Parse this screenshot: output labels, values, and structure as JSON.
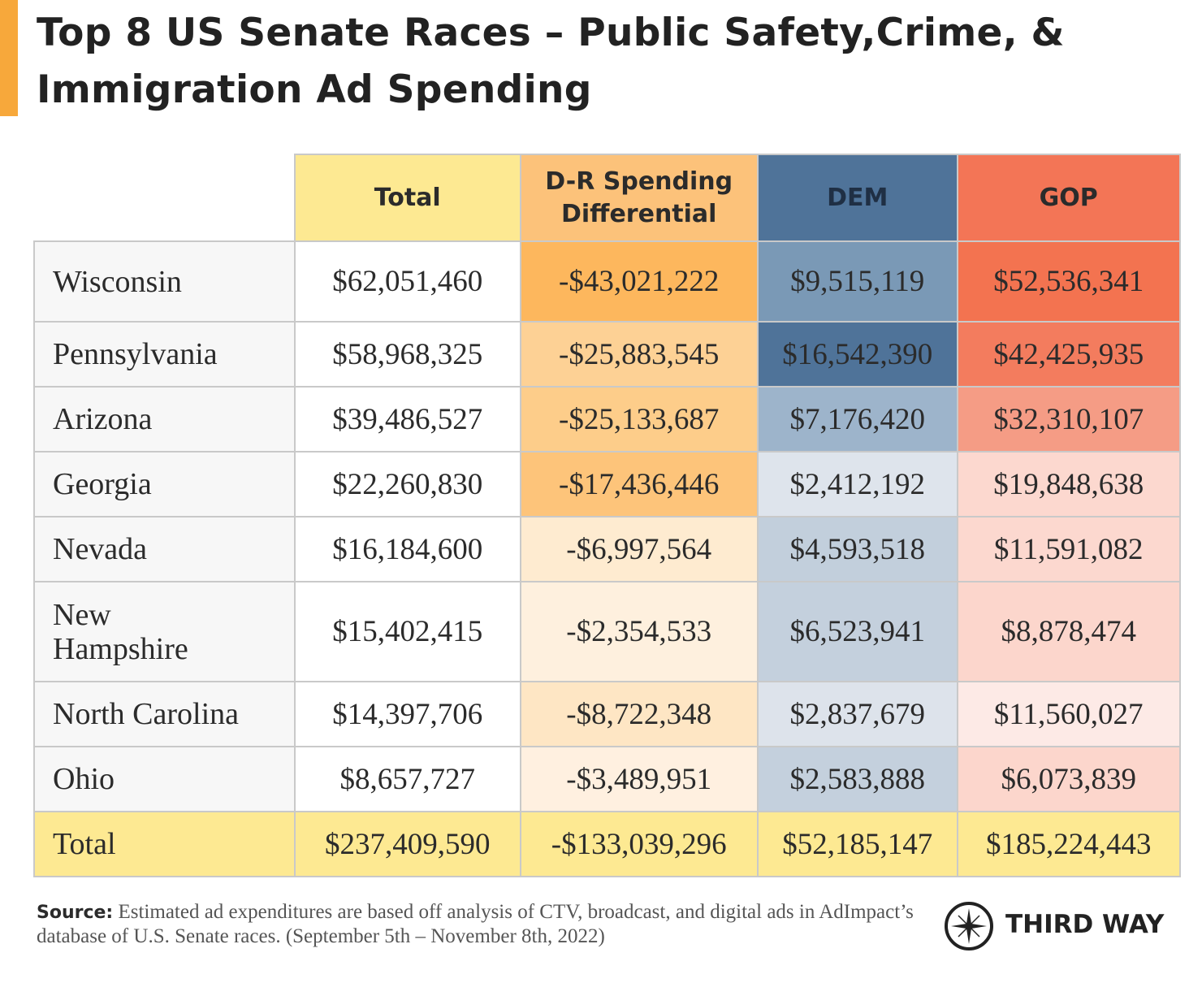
{
  "header": {
    "title": [
      "Top 8 US Senate Races – Public Safety,Crime, &",
      "Immigration Ad Spending"
    ]
  },
  "table": {
    "columns": [
      {
        "label": "Total",
        "color": "#fde992"
      },
      {
        "label": "D-R Spending Differential",
        "color": "#fcc27a"
      },
      {
        "label": "DEM",
        "color": "#4f7399"
      },
      {
        "label": "GOP",
        "color": "#f37556"
      }
    ],
    "rows": [
      {
        "name": "Wisconsin",
        "cells": [
          "$62,051,460",
          "-$43,021,222",
          "$9,515,119",
          "$52,536,341"
        ],
        "colors": [
          "#ffffff",
          "#fdb75d",
          "#7a99b6",
          "#f37350"
        ]
      },
      {
        "name": "Pennsylvania",
        "cells": [
          "$58,968,325",
          "-$25,883,545",
          "$16,542,390",
          "$42,425,935"
        ],
        "colors": [
          "#ffffff",
          "#fdd195",
          "#4f7399",
          "#f37c5e"
        ]
      },
      {
        "name": "Arizona",
        "cells": [
          "$39,486,527",
          "-$25,133,687",
          "$7,176,420",
          "$32,310,107"
        ],
        "colors": [
          "#ffffff",
          "#fdcd8a",
          "#9db4cb",
          "#f59c85"
        ]
      },
      {
        "name": "Georgia",
        "cells": [
          "$22,260,830",
          "-$17,436,446",
          "$2,412,192",
          "$19,848,638"
        ],
        "colors": [
          "#ffffff",
          "#fdc47a",
          "#dee4ec",
          "#fcd8cf"
        ]
      },
      {
        "name": "Nevada",
        "cells": [
          "$16,184,600",
          "-$6,997,564",
          "$4,593,518",
          "$11,591,082"
        ],
        "colors": [
          "#ffffff",
          "#feebd0",
          "#c2cfdc",
          "#fcd8cf"
        ]
      },
      {
        "name": "New Hampshire",
        "cells": [
          "$15,402,415",
          "-$2,354,533",
          "$6,523,941",
          "$8,878,474"
        ],
        "colors": [
          "#ffffff",
          "#fef0de",
          "#c4d0dd",
          "#fcd6cc"
        ]
      },
      {
        "name": "North Carolina",
        "cells": [
          "$14,397,706",
          "-$8,722,348",
          "$2,837,679",
          "$11,560,027"
        ],
        "colors": [
          "#ffffff",
          "#fee6c4",
          "#dde3eb",
          "#fdeae6"
        ]
      },
      {
        "name": "Ohio",
        "cells": [
          "$8,657,727",
          "-$3,489,951",
          "$2,583,888",
          "$6,073,839"
        ],
        "colors": [
          "#ffffff",
          "#fff0e0",
          "#c4d0dd",
          "#fcd6cc"
        ]
      }
    ],
    "total": {
      "name": "Total",
      "cells": [
        "$237,409,590",
        "-$133,039,296",
        "$52,185,147",
        "$185,224,443"
      ],
      "color": "#fde992"
    }
  },
  "source": {
    "label": "Source:",
    "text": "Estimated ad expenditures are based off analysis of CTV, broadcast, and digital ads in AdImpact’s database of U.S. Senate races. (September 5th – November 8th, 2022)"
  },
  "logo": {
    "text": "THIRD WAY"
  }
}
